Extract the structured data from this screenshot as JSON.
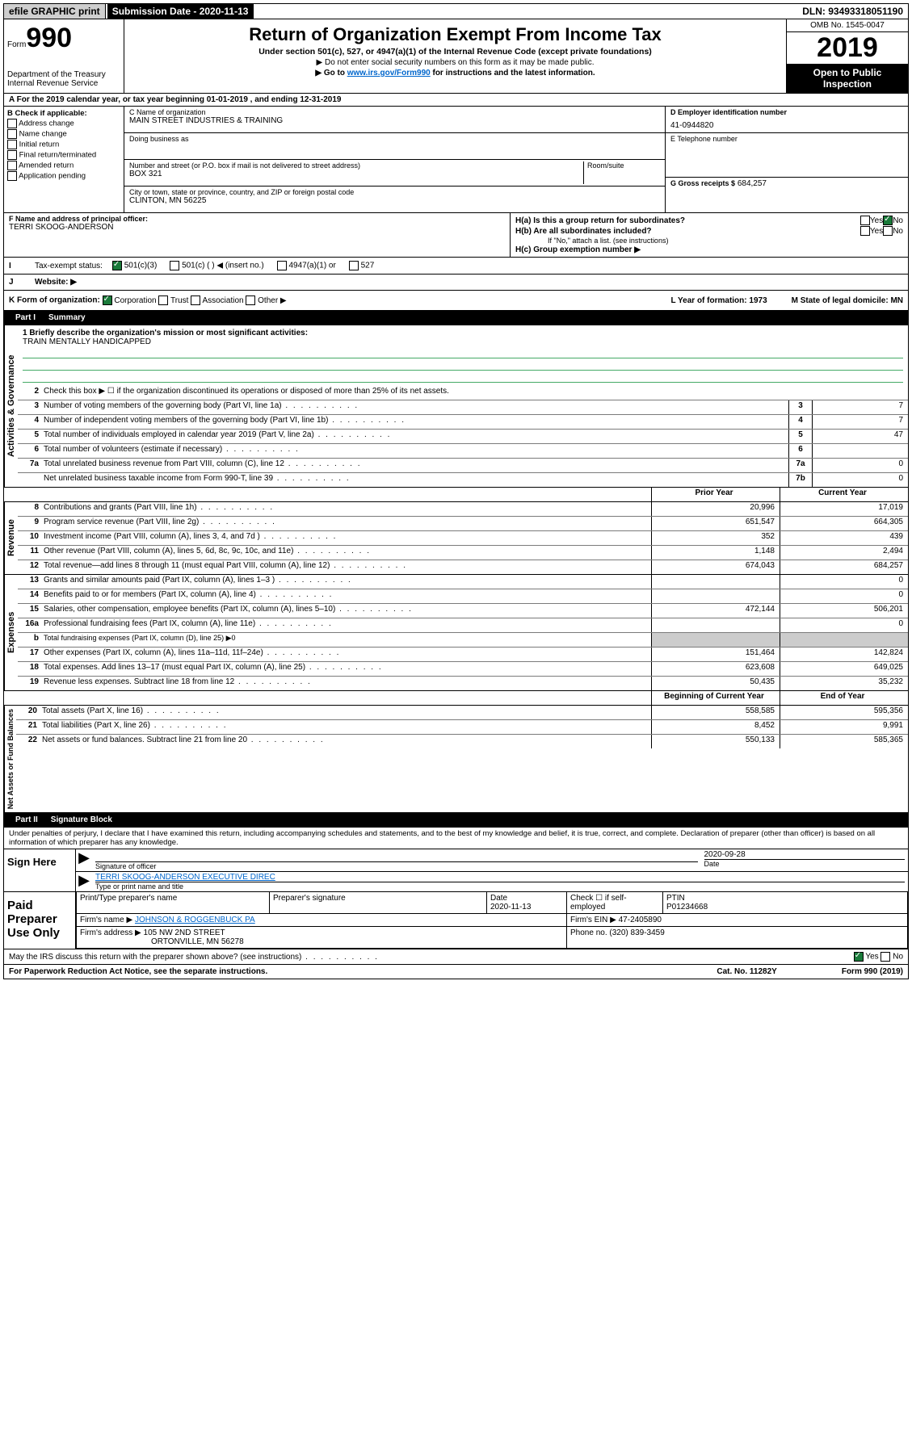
{
  "top": {
    "efile": "efile GRAPHIC print",
    "submission": "Submission Date - 2020-11-13",
    "dln": "DLN: 93493318051190"
  },
  "header": {
    "form_prefix": "Form",
    "form_num": "990",
    "dept": "Department of the Treasury",
    "irs": "Internal Revenue Service",
    "title": "Return of Organization Exempt From Income Tax",
    "subtitle": "Under section 501(c), 527, or 4947(a)(1) of the Internal Revenue Code (except private foundations)",
    "note1": "▶ Do not enter social security numbers on this form as it may be made public.",
    "note2_pre": "▶ Go to ",
    "note2_link": "www.irs.gov/Form990",
    "note2_post": " for instructions and the latest information.",
    "omb": "OMB No. 1545-0047",
    "year": "2019",
    "open": "Open to Public Inspection"
  },
  "lineA": "For the 2019 calendar year, or tax year beginning 01-01-2019   , and ending 12-31-2019",
  "checkB": {
    "title": "B Check if applicable:",
    "items": [
      "Address change",
      "Name change",
      "Initial return",
      "Final return/terminated",
      "Amended return",
      "Application pending"
    ]
  },
  "blockC": {
    "name_label": "C Name of organization",
    "name": "MAIN STREET INDUSTRIES & TRAINING",
    "dba_label": "Doing business as",
    "addr_label": "Number and street (or P.O. box if mail is not delivered to street address)",
    "room_label": "Room/suite",
    "addr": "BOX 321",
    "city_label": "City or town, state or province, country, and ZIP or foreign postal code",
    "city": "CLINTON, MN  56225"
  },
  "blockD": {
    "ein_label": "D Employer identification number",
    "ein": "41-0944820",
    "phone_label": "E Telephone number",
    "gross_label": "G Gross receipts $",
    "gross": "684,257"
  },
  "blockF": {
    "label": "F  Name and address of principal officer:",
    "name": "TERRI SKOOG-ANDERSON"
  },
  "blockH": {
    "ha": "H(a)  Is this a group return for subordinates?",
    "hb": "H(b)  Are all subordinates included?",
    "hb_note": "If \"No,\" attach a list. (see instructions)",
    "hc": "H(c)  Group exemption number ▶"
  },
  "rowI": {
    "label": "Tax-exempt status:",
    "opts": [
      "501(c)(3)",
      "501(c) (  ) ◀ (insert no.)",
      "4947(a)(1) or",
      "527"
    ]
  },
  "rowJ": {
    "label": "Website: ▶"
  },
  "rowK": {
    "label": "K Form of organization:",
    "opts": [
      "Corporation",
      "Trust",
      "Association",
      "Other ▶"
    ],
    "L": "L Year of formation: 1973",
    "M": "M State of legal domicile: MN"
  },
  "partI": {
    "title": "Part I",
    "name": "Summary",
    "briefly_label": "1  Briefly describe the organization's mission or most significant activities:",
    "briefly": "TRAIN MENTALLY HANDICAPPED",
    "line2": "Check this box ▶ ☐  if the organization discontinued its operations or disposed of more than 25% of its net assets.",
    "governance": "Activities & Governance",
    "revenue": "Revenue",
    "expenses": "Expenses",
    "netassets": "Net Assets or Fund Balances"
  },
  "lines_gov": [
    {
      "n": "3",
      "d": "Number of voting members of the governing body (Part VI, line 1a)",
      "b": "3",
      "v": "7"
    },
    {
      "n": "4",
      "d": "Number of independent voting members of the governing body (Part VI, line 1b)",
      "b": "4",
      "v": "7"
    },
    {
      "n": "5",
      "d": "Total number of individuals employed in calendar year 2019 (Part V, line 2a)",
      "b": "5",
      "v": "47"
    },
    {
      "n": "6",
      "d": "Total number of volunteers (estimate if necessary)",
      "b": "6",
      "v": ""
    },
    {
      "n": "7a",
      "d": "Total unrelated business revenue from Part VIII, column (C), line 12",
      "b": "7a",
      "v": "0"
    },
    {
      "n": "",
      "d": "Net unrelated business taxable income from Form 990-T, line 39",
      "b": "7b",
      "v": "0"
    }
  ],
  "col_headers": {
    "prior": "Prior Year",
    "current": "Current Year",
    "begin": "Beginning of Current Year",
    "end": "End of Year"
  },
  "lines_rev": [
    {
      "n": "8",
      "d": "Contributions and grants (Part VIII, line 1h)",
      "p": "20,996",
      "c": "17,019"
    },
    {
      "n": "9",
      "d": "Program service revenue (Part VIII, line 2g)",
      "p": "651,547",
      "c": "664,305"
    },
    {
      "n": "10",
      "d": "Investment income (Part VIII, column (A), lines 3, 4, and 7d )",
      "p": "352",
      "c": "439"
    },
    {
      "n": "11",
      "d": "Other revenue (Part VIII, column (A), lines 5, 6d, 8c, 9c, 10c, and 11e)",
      "p": "1,148",
      "c": "2,494"
    },
    {
      "n": "12",
      "d": "Total revenue—add lines 8 through 11 (must equal Part VIII, column (A), line 12)",
      "p": "674,043",
      "c": "684,257"
    }
  ],
  "lines_exp": [
    {
      "n": "13",
      "d": "Grants and similar amounts paid (Part IX, column (A), lines 1–3 )",
      "p": "",
      "c": "0"
    },
    {
      "n": "14",
      "d": "Benefits paid to or for members (Part IX, column (A), line 4)",
      "p": "",
      "c": "0"
    },
    {
      "n": "15",
      "d": "Salaries, other compensation, employee benefits (Part IX, column (A), lines 5–10)",
      "p": "472,144",
      "c": "506,201"
    },
    {
      "n": "16a",
      "d": "Professional fundraising fees (Part IX, column (A), line 11e)",
      "p": "",
      "c": "0"
    },
    {
      "n": "b",
      "d": "Total fundraising expenses (Part IX, column (D), line 25) ▶0",
      "p": "",
      "c": "",
      "nocols": true
    },
    {
      "n": "17",
      "d": "Other expenses (Part IX, column (A), lines 11a–11d, 11f–24e)",
      "p": "151,464",
      "c": "142,824"
    },
    {
      "n": "18",
      "d": "Total expenses. Add lines 13–17 (must equal Part IX, column (A), line 25)",
      "p": "623,608",
      "c": "649,025"
    },
    {
      "n": "19",
      "d": "Revenue less expenses. Subtract line 18 from line 12",
      "p": "50,435",
      "c": "35,232"
    }
  ],
  "lines_net": [
    {
      "n": "20",
      "d": "Total assets (Part X, line 16)",
      "p": "558,585",
      "c": "595,356"
    },
    {
      "n": "21",
      "d": "Total liabilities (Part X, line 26)",
      "p": "8,452",
      "c": "9,991"
    },
    {
      "n": "22",
      "d": "Net assets or fund balances. Subtract line 21 from line 20",
      "p": "550,133",
      "c": "585,365"
    }
  ],
  "partII": {
    "title": "Part II",
    "name": "Signature Block",
    "declare": "Under penalties of perjury, I declare that I have examined this return, including accompanying schedules and statements, and to the best of my knowledge and belief, it is true, correct, and complete. Declaration of preparer (other than officer) is based on all information of which preparer has any knowledge."
  },
  "sign": {
    "here": "Sign Here",
    "sig_label": "Signature of officer",
    "date": "2020-09-28",
    "date_label": "Date",
    "name": "TERRI SKOOG-ANDERSON  EXECUTIVE DIREC",
    "name_label": "Type or print name and title"
  },
  "paid": {
    "label": "Paid Preparer Use Only",
    "h1": "Print/Type preparer's name",
    "h2": "Preparer's signature",
    "h3": "Date",
    "h3v": "2020-11-13",
    "h4": "Check ☐ if self-employed",
    "h5": "PTIN",
    "h5v": "P01234668",
    "firm_name_l": "Firm's name    ▶",
    "firm_name": "JOHNSON & ROGGENBUCK PA",
    "firm_ein_l": "Firm's EIN ▶",
    "firm_ein": "47-2405890",
    "firm_addr_l": "Firm's address ▶",
    "firm_addr1": "105 NW 2ND STREET",
    "firm_addr2": "ORTONVILLE, MN  56278",
    "phone_l": "Phone no.",
    "phone": "(320) 839-3459"
  },
  "footer": {
    "discuss": "May the IRS discuss this return with the preparer shown above? (see instructions)",
    "paperwork": "For Paperwork Reduction Act Notice, see the separate instructions.",
    "cat": "Cat. No. 11282Y",
    "form": "Form 990 (2019)"
  }
}
